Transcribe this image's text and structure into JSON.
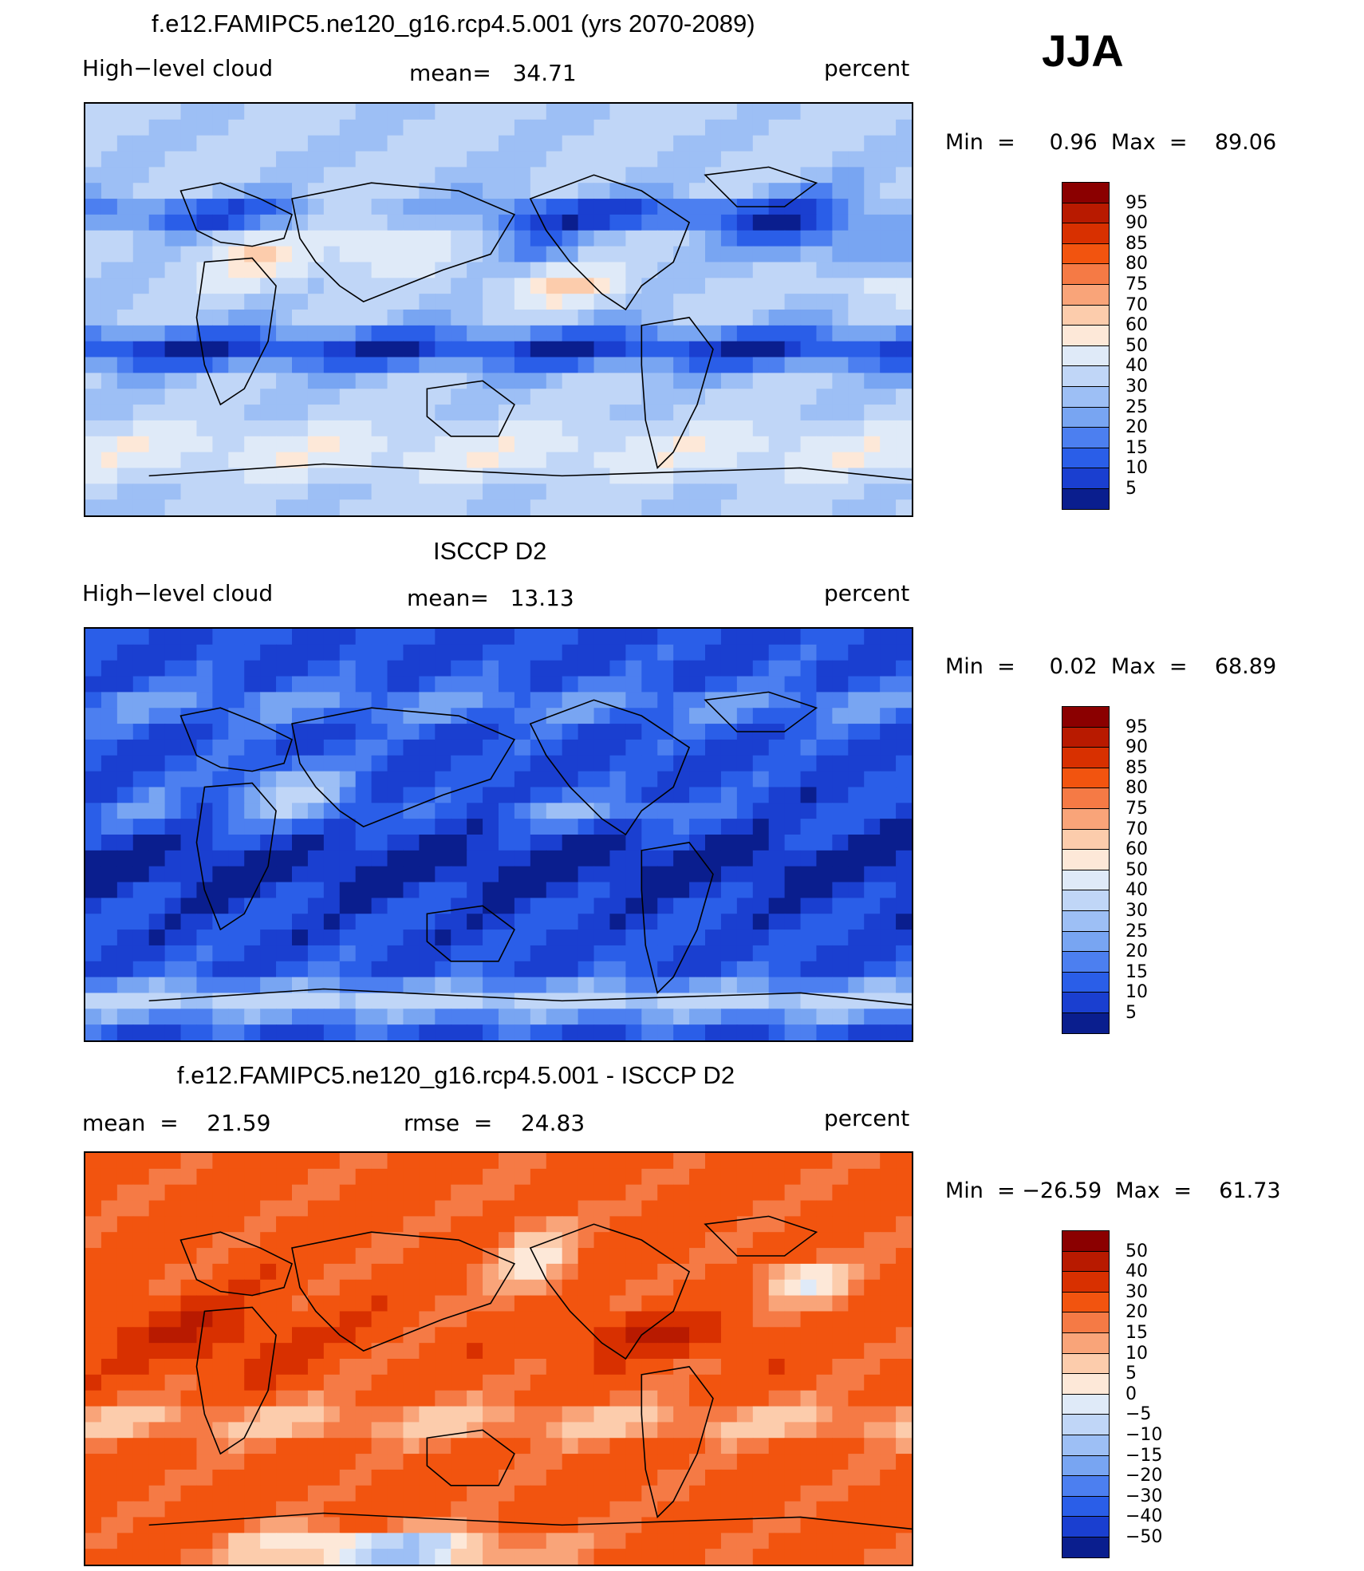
{
  "season": "JJA",
  "panels": [
    {
      "title": "f.e12.FAMIPC5.ne120_g16.rcp4.5.001 (yrs 2070-2089)",
      "left_label": "High−level cloud",
      "center_label": "mean=   34.71",
      "right_label": "percent",
      "minmax": "Min  =     0.96  Max  =    89.06",
      "levels": [
        "95",
        "90",
        "85",
        "80",
        "75",
        "70",
        "60",
        "50",
        "40",
        "30",
        "25",
        "20",
        "15",
        "10",
        "5"
      ],
      "colors": [
        "#8b0000",
        "#b81a00",
        "#d83000",
        "#f2540f",
        "#f57a45",
        "#f9a479",
        "#fcccac",
        "#fde8d8",
        "#dfeaf8",
        "#c0d6f7",
        "#9dbff5",
        "#78a5f2",
        "#4c7ff0",
        "#2a5ee8",
        "#1a3fd0",
        "#0a1e8e"
      ],
      "field": "model"
    },
    {
      "title": "ISCCP D2",
      "left_label": "High−level cloud",
      "center_label": "mean=   13.13",
      "right_label": "percent",
      "minmax": "Min  =     0.02  Max  =    68.89",
      "levels": [
        "95",
        "90",
        "85",
        "80",
        "75",
        "70",
        "60",
        "50",
        "40",
        "30",
        "25",
        "20",
        "15",
        "10",
        "5"
      ],
      "colors": [
        "#8b0000",
        "#b81a00",
        "#d83000",
        "#f2540f",
        "#f57a45",
        "#f9a479",
        "#fcccac",
        "#fde8d8",
        "#dfeaf8",
        "#c0d6f7",
        "#9dbff5",
        "#78a5f2",
        "#4c7ff0",
        "#2a5ee8",
        "#1a3fd0",
        "#0a1e8e"
      ],
      "field": "obs"
    },
    {
      "title": "f.e12.FAMIPC5.ne120_g16.rcp4.5.001 - ISCCP D2",
      "left_label": "mean  =    21.59",
      "center_label": "rmse  =    24.83",
      "right_label": "percent",
      "minmax": "Min  = −26.59  Max  =    61.73",
      "levels": [
        "50",
        "40",
        "30",
        "20",
        "15",
        "10",
        "5",
        "0",
        "−5",
        "−10",
        "−15",
        "−20",
        "−30",
        "−40",
        "−50"
      ],
      "colors": [
        "#8b0000",
        "#b81a00",
        "#d83000",
        "#f2540f",
        "#f57a45",
        "#f9a479",
        "#fcccac",
        "#fde8d8",
        "#dfeaf8",
        "#c0d6f7",
        "#9dbff5",
        "#78a5f2",
        "#4c7ff0",
        "#2a5ee8",
        "#1a3fd0",
        "#0a1e8e"
      ],
      "field": "diff"
    }
  ]
}
